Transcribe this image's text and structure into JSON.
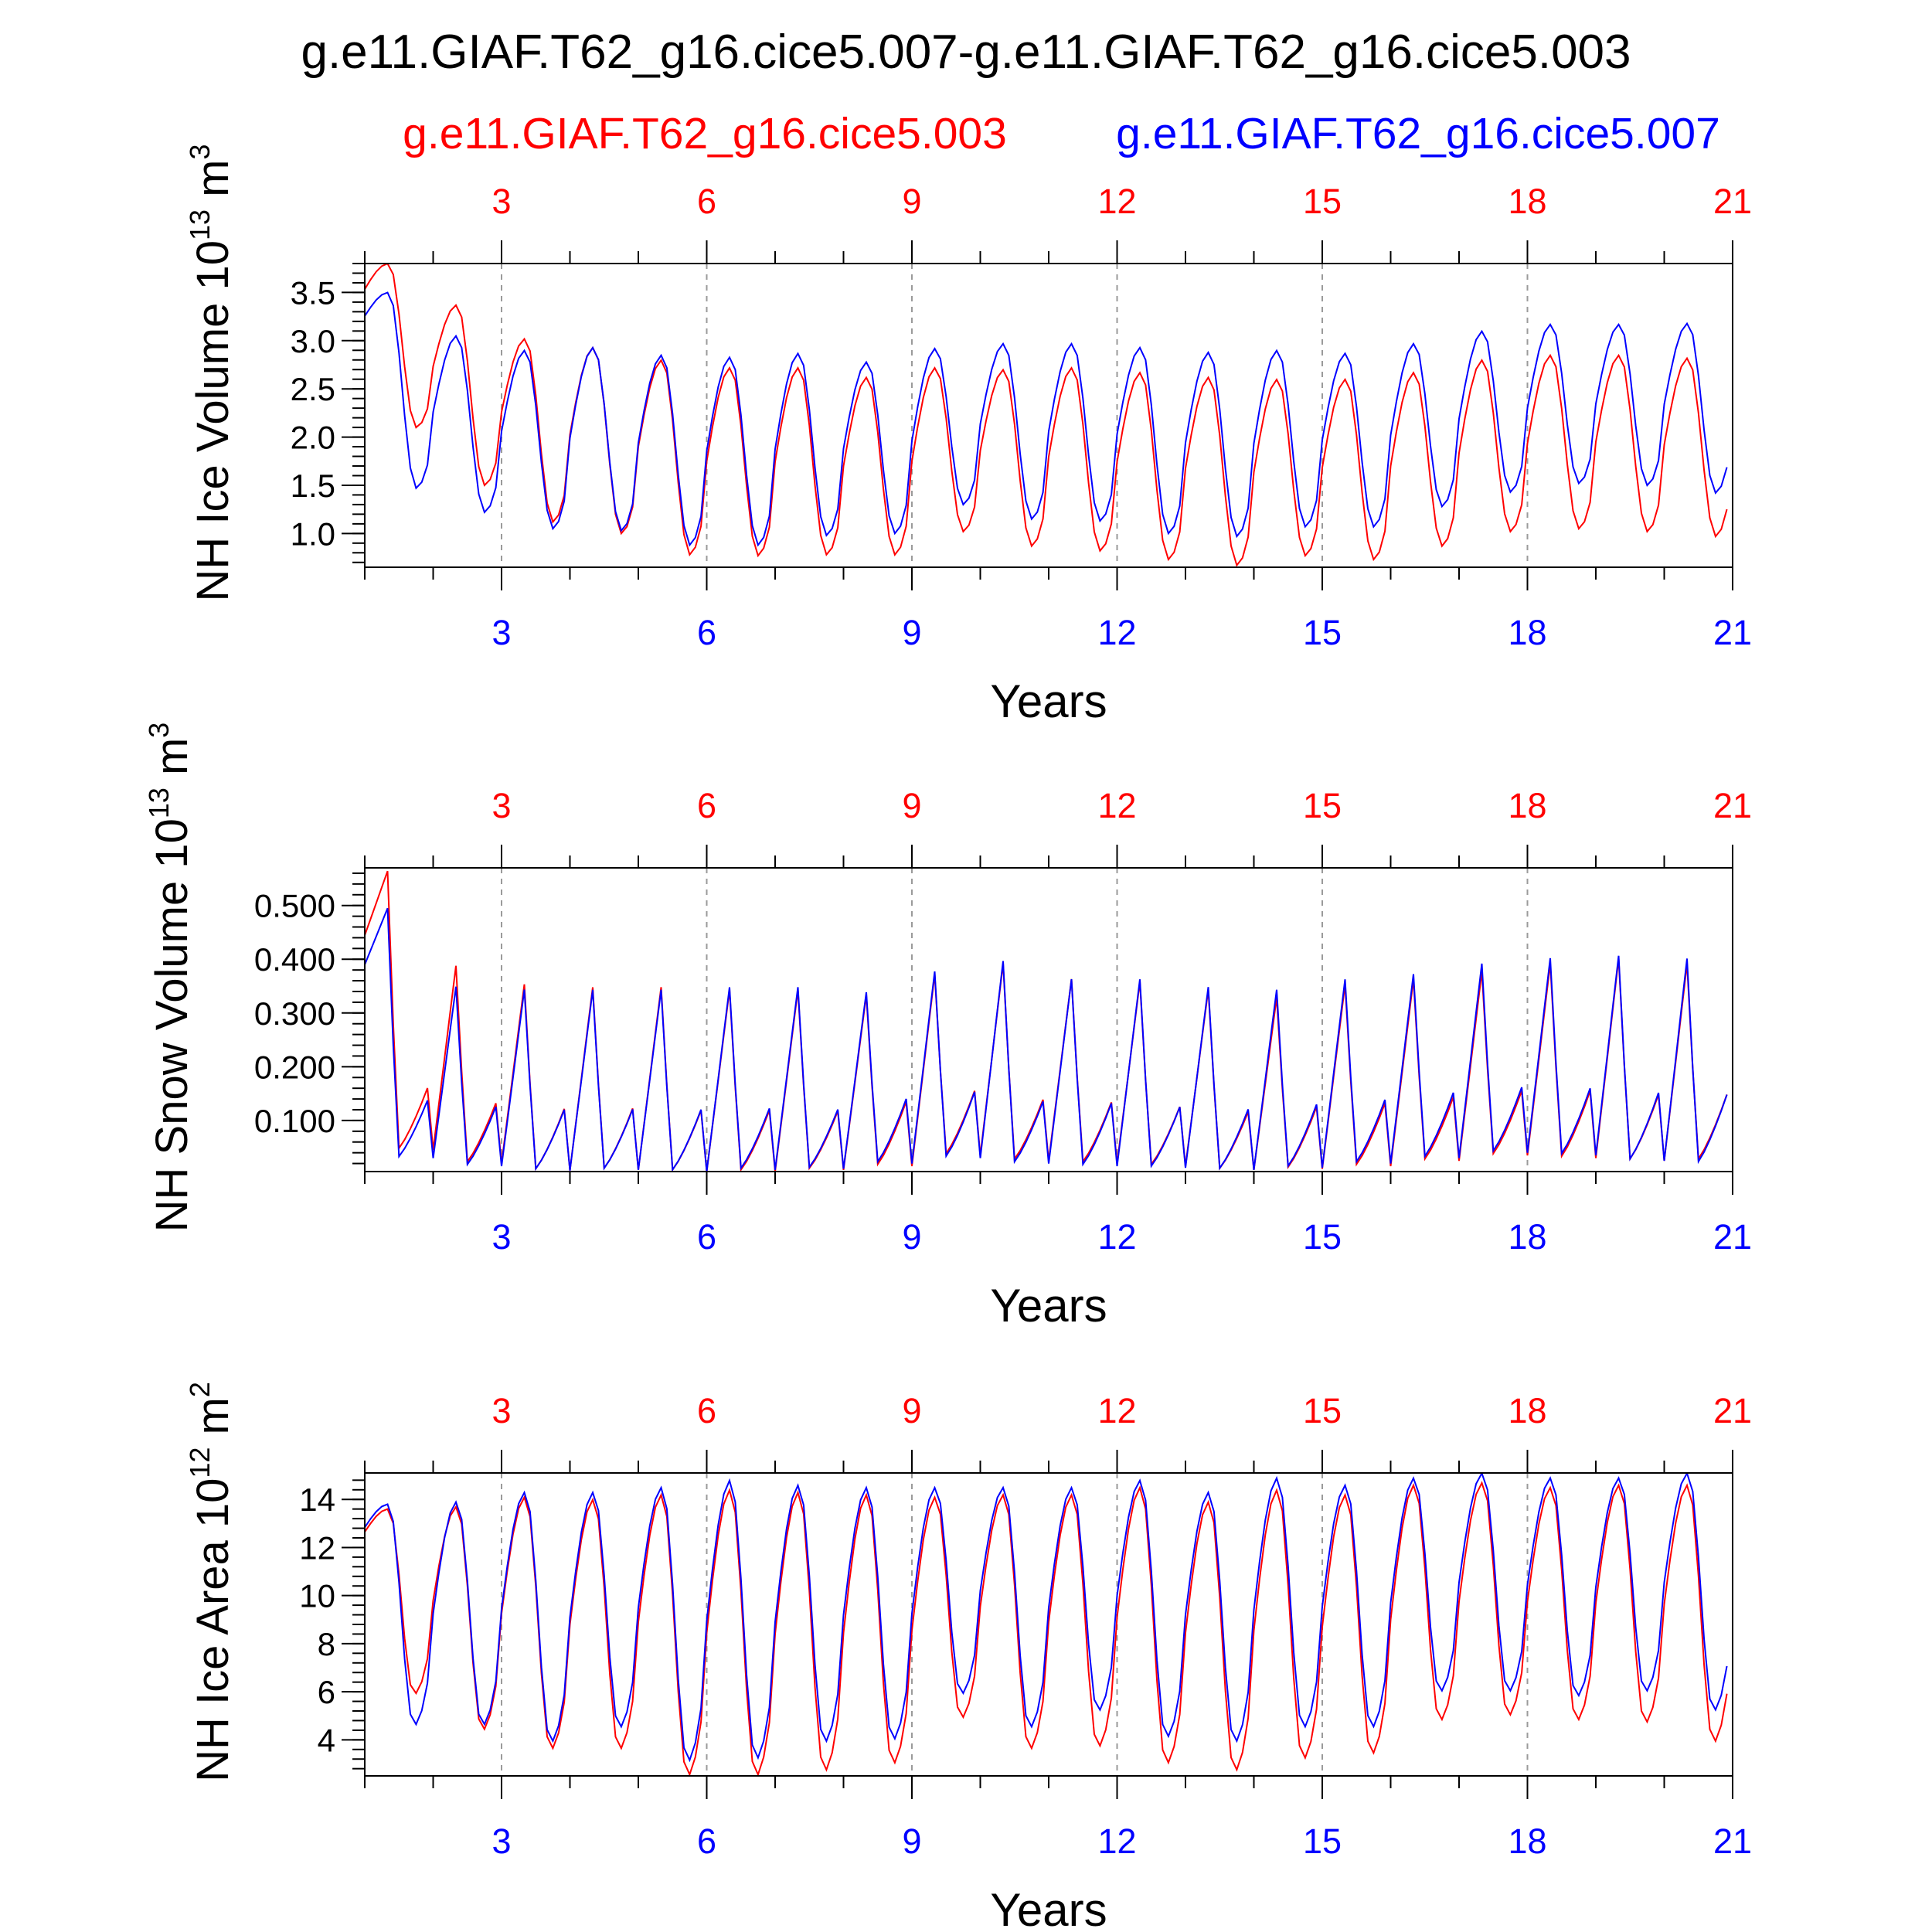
{
  "page": {
    "title": "g.e11.GIAF.T62_g16.cice5.007-g.e11.GIAF.T62_g16.cice5.003",
    "legend": [
      {
        "label": "g.e11.GIAF.T62_g16.cice5.003",
        "color": "#ff0000"
      },
      {
        "label": "g.e11.GIAF.T62_g16.cice5.007",
        "color": "#0000ff"
      }
    ]
  },
  "chart_data": [
    {
      "type": "line",
      "ylabel": "NH Ice Volume 10^13 m^3",
      "xlabel": "Years",
      "xlim": [
        1,
        21
      ],
      "ylim": [
        0.65,
        3.8
      ],
      "xticks": [
        3,
        6,
        9,
        12,
        15,
        18,
        21
      ],
      "yticks": [
        1.0,
        1.5,
        2.0,
        2.5,
        3.0,
        3.5
      ],
      "ytick_labels": [
        "1.0",
        "1.5",
        "2.0",
        "2.5",
        "3.0",
        "3.5"
      ],
      "minor_ytick_step": 0.1,
      "grid_x": "dashed vertical at major ticks",
      "series": [
        {
          "name": "g.e11.GIAF.T62_g16.cice5.003",
          "color": "#ff0000",
          "max": [
            3.8,
            3.37,
            3.02,
            2.93,
            2.8,
            2.72,
            2.72,
            2.62,
            2.72,
            2.7,
            2.72,
            2.67,
            2.62,
            2.6,
            2.6,
            2.67,
            2.8,
            2.85,
            2.85,
            2.82
          ],
          "min": [
            2.1,
            1.5,
            1.12,
            1.0,
            0.78,
            0.77,
            0.78,
            0.78,
            1.02,
            0.87,
            0.82,
            0.73,
            0.67,
            0.77,
            0.73,
            0.87,
            1.02,
            1.05,
            1.02,
            0.97
          ]
        },
        {
          "name": "g.e11.GIAF.T62_g16.cice5.007",
          "color": "#0000ff",
          "max": [
            3.5,
            3.05,
            2.9,
            2.93,
            2.85,
            2.83,
            2.87,
            2.78,
            2.92,
            2.97,
            2.97,
            2.93,
            2.88,
            2.9,
            2.87,
            2.97,
            3.1,
            3.17,
            3.17,
            3.18
          ],
          "min": [
            1.47,
            1.22,
            1.05,
            1.03,
            0.88,
            0.88,
            0.98,
            1.0,
            1.3,
            1.15,
            1.13,
            1.0,
            0.97,
            1.07,
            1.07,
            1.28,
            1.43,
            1.52,
            1.5,
            1.42
          ]
        }
      ]
    },
    {
      "type": "line",
      "ylabel": "NH Snow Volume 10^13 m^3",
      "xlabel": "Years",
      "xlim": [
        1,
        21
      ],
      "ylim": [
        0.005,
        0.57
      ],
      "xticks": [
        3,
        6,
        9,
        12,
        15,
        18,
        21
      ],
      "yticks": [
        0.1,
        0.2,
        0.3,
        0.4,
        0.5
      ],
      "ytick_labels": [
        "0.100",
        "0.200",
        "0.300",
        "0.400",
        "0.500"
      ],
      "minor_ytick_step": 0.02,
      "grid_x": "dashed vertical at major ticks",
      "series": [
        {
          "name": "g.e11.GIAF.T62_g16.cice5.003",
          "color": "#ff0000",
          "max": [
            0.57,
            0.405,
            0.37,
            0.365,
            0.365,
            0.36,
            0.36,
            0.35,
            0.39,
            0.41,
            0.38,
            0.375,
            0.36,
            0.345,
            0.37,
            0.38,
            0.395,
            0.41,
            0.42,
            0.41
          ],
          "min": [
            0.045,
            0.02,
            0.007,
            0.008,
            0.005,
            0.005,
            0.008,
            0.015,
            0.035,
            0.025,
            0.02,
            0.015,
            0.008,
            0.01,
            0.015,
            0.025,
            0.035,
            0.03,
            0.025,
            0.025
          ]
        },
        {
          "name": "g.e11.GIAF.T62_g16.cice5.007",
          "color": "#0000ff",
          "max": [
            0.5,
            0.365,
            0.36,
            0.36,
            0.36,
            0.365,
            0.365,
            0.355,
            0.395,
            0.415,
            0.38,
            0.38,
            0.365,
            0.36,
            0.38,
            0.39,
            0.41,
            0.42,
            0.425,
            0.42
          ],
          "min": [
            0.03,
            0.015,
            0.007,
            0.008,
            0.005,
            0.008,
            0.01,
            0.02,
            0.03,
            0.02,
            0.015,
            0.012,
            0.008,
            0.012,
            0.02,
            0.03,
            0.04,
            0.035,
            0.025,
            0.02
          ]
        }
      ]
    },
    {
      "type": "line",
      "ylabel": "NH Ice Area 10^12 m^2",
      "xlabel": "Years",
      "xlim": [
        1,
        21
      ],
      "ylim": [
        2.5,
        15.1
      ],
      "xticks": [
        3,
        6,
        9,
        12,
        15,
        18,
        21
      ],
      "yticks": [
        4,
        6,
        8,
        10,
        12,
        14
      ],
      "ytick_labels": [
        "4",
        "6",
        "8",
        "10",
        "12",
        "14"
      ],
      "minor_ytick_step": 0.4,
      "grid_x": "dashed vertical at major ticks",
      "series": [
        {
          "name": "g.e11.GIAF.T62_g16.cice5.003",
          "color": "#ff0000",
          "max": [
            13.6,
            13.7,
            14.1,
            14.0,
            14.2,
            14.4,
            14.3,
            14.2,
            14.1,
            14.2,
            14.2,
            14.5,
            13.9,
            14.4,
            14.2,
            14.6,
            14.7,
            14.5,
            14.6,
            14.6
          ],
          "min": [
            5.9,
            4.4,
            3.6,
            3.6,
            2.5,
            2.5,
            2.7,
            3.0,
            4.9,
            3.6,
            3.7,
            3.0,
            2.7,
            3.2,
            3.4,
            4.8,
            5.0,
            4.8,
            4.7,
            3.9
          ]
        },
        {
          "name": "g.e11.GIAF.T62_g16.cice5.007",
          "color": "#0000ff",
          "max": [
            13.8,
            13.9,
            14.3,
            14.3,
            14.5,
            14.8,
            14.6,
            14.5,
            14.5,
            14.5,
            14.5,
            14.8,
            14.3,
            14.9,
            14.6,
            14.9,
            15.1,
            14.9,
            14.9,
            15.1
          ],
          "min": [
            4.6,
            4.6,
            3.9,
            4.5,
            3.1,
            3.2,
            3.9,
            4.0,
            5.9,
            4.5,
            5.2,
            4.1,
            3.9,
            4.5,
            4.5,
            6.0,
            6.0,
            5.8,
            6.0,
            5.2
          ]
        }
      ]
    }
  ]
}
